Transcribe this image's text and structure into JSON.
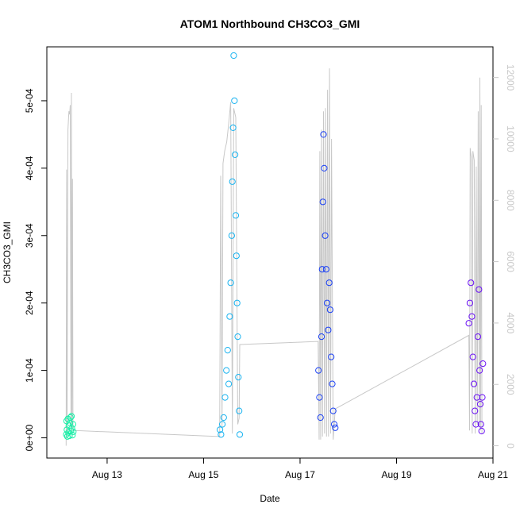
{
  "chart_data": {
    "type": "scatter",
    "title": "ATOM1 Northbound CH3CO3_GMI",
    "xlabel": "Date",
    "ylabel": "CH3CO3_GMI",
    "x_axis": {
      "type": "date",
      "range": [
        "2016-08-11T18:00",
        "2016-08-21T00:00"
      ],
      "ticks": [
        {
          "value": "2016-08-13",
          "label": "Aug 13"
        },
        {
          "value": "2016-08-15",
          "label": "Aug 15"
        },
        {
          "value": "2016-08-17",
          "label": "Aug 17"
        },
        {
          "value": "2016-08-19",
          "label": "Aug 19"
        },
        {
          "value": "2016-08-21",
          "label": "Aug 21"
        }
      ]
    },
    "y_axis_left": {
      "range": [
        -3e-05,
        0.00058
      ],
      "ticks": [
        {
          "value": 0,
          "label": "0e+00"
        },
        {
          "value": 0.0001,
          "label": "1e-04"
        },
        {
          "value": 0.0002,
          "label": "2e-04"
        },
        {
          "value": 0.0003,
          "label": "3e-04"
        },
        {
          "value": 0.0004,
          "label": "4e-04"
        },
        {
          "value": 0.0005,
          "label": "5e-04"
        }
      ]
    },
    "y_axis_right": {
      "color": "#c8c8c8",
      "range": [
        -400,
        13000
      ],
      "ticks": [
        {
          "value": 0,
          "label": "0"
        },
        {
          "value": 2000,
          "label": "2000"
        },
        {
          "value": 4000,
          "label": "4000"
        },
        {
          "value": 6000,
          "label": "6000"
        },
        {
          "value": 8000,
          "label": "8000"
        },
        {
          "value": 10000,
          "label": "10000"
        },
        {
          "value": 12000,
          "label": "12000"
        }
      ]
    },
    "grid": false,
    "legend": "none",
    "altitude_trace": {
      "color": "#c8c8c8",
      "points": [
        [
          "2016-08-12T03:36",
          0
        ],
        [
          "2016-08-12T03:50",
          9000
        ],
        [
          "2016-08-12T04:05",
          400
        ],
        [
          "2016-08-12T04:30",
          10300
        ],
        [
          "2016-08-12T05:00",
          10900
        ],
        [
          "2016-08-12T05:20",
          10800
        ],
        [
          "2016-08-12T05:40",
          11100
        ],
        [
          "2016-08-12T06:00",
          600
        ],
        [
          "2016-08-12T06:15",
          11500
        ],
        [
          "2016-08-12T06:30",
          300
        ],
        [
          "2016-08-12T06:45",
          8700
        ],
        [
          "2016-08-12T07:00",
          600
        ],
        [
          "2016-08-12T07:10",
          500
        ],
        [
          "2016-08-15T08:00",
          300
        ],
        [
          "2016-08-15T08:30",
          8800
        ],
        [
          "2016-08-15T09:10",
          600
        ],
        [
          "2016-08-15T09:40",
          9200
        ],
        [
          "2016-08-15T10:30",
          9600
        ],
        [
          "2016-08-15T11:30",
          9900
        ],
        [
          "2016-08-15T12:30",
          10500
        ],
        [
          "2016-08-15T13:30",
          11200
        ],
        [
          "2016-08-15T14:20",
          400
        ],
        [
          "2016-08-15T15:00",
          11000
        ],
        [
          "2016-08-15T16:00",
          10700
        ],
        [
          "2016-08-15T17:00",
          700
        ],
        [
          "2016-08-15T17:40",
          900
        ],
        [
          "2016-08-15T18:00",
          3300
        ],
        [
          "2016-08-17T09:00",
          3400
        ],
        [
          "2016-08-17T09:30",
          200
        ],
        [
          "2016-08-17T09:50",
          9600
        ],
        [
          "2016-08-17T10:15",
          200
        ],
        [
          "2016-08-17T10:40",
          10300
        ],
        [
          "2016-08-17T11:10",
          300
        ],
        [
          "2016-08-17T11:40",
          10900
        ],
        [
          "2016-08-17T12:10",
          400
        ],
        [
          "2016-08-17T12:40",
          11000
        ],
        [
          "2016-08-17T13:10",
          300
        ],
        [
          "2016-08-17T13:40",
          11600
        ],
        [
          "2016-08-17T14:10",
          300
        ],
        [
          "2016-08-17T14:40",
          12300
        ],
        [
          "2016-08-17T15:10",
          400
        ],
        [
          "2016-08-17T15:40",
          10000
        ],
        [
          "2016-08-17T16:30",
          200
        ],
        [
          "2016-08-17T17:30",
          1200
        ],
        [
          "2016-08-20T12:00",
          3600
        ],
        [
          "2016-08-20T12:20",
          500
        ],
        [
          "2016-08-20T12:40",
          9700
        ],
        [
          "2016-08-20T13:10",
          9400
        ],
        [
          "2016-08-20T13:40",
          400
        ],
        [
          "2016-08-20T14:00",
          9600
        ],
        [
          "2016-08-20T14:40",
          9300
        ],
        [
          "2016-08-20T15:10",
          400
        ],
        [
          "2016-08-20T15:40",
          9100
        ],
        [
          "2016-08-20T16:10",
          700
        ],
        [
          "2016-08-20T16:40",
          10900
        ],
        [
          "2016-08-20T17:10",
          600
        ],
        [
          "2016-08-20T17:30",
          12000
        ],
        [
          "2016-08-20T17:50",
          500
        ],
        [
          "2016-08-20T18:10",
          11100
        ],
        [
          "2016-08-20T18:30",
          400
        ]
      ]
    },
    "series": [
      {
        "color": "#19f0a8",
        "points": [
          [
            "2016-08-12T03:40",
            5e-06
          ],
          [
            "2016-08-12T03:50",
            2.5e-05
          ],
          [
            "2016-08-12T04:00",
            1.2e-05
          ],
          [
            "2016-08-12T04:15",
            2e-06
          ],
          [
            "2016-08-12T04:30",
            2.8e-05
          ],
          [
            "2016-08-12T04:45",
            8e-06
          ],
          [
            "2016-08-12T05:00",
            1.8e-05
          ],
          [
            "2016-08-12T05:15",
            3e-06
          ],
          [
            "2016-08-12T05:30",
            2.2e-05
          ],
          [
            "2016-08-12T05:45",
            3e-05
          ],
          [
            "2016-08-12T06:00",
            1e-05
          ],
          [
            "2016-08-12T06:15",
            3.2e-05
          ],
          [
            "2016-08-12T06:30",
            1.4e-05
          ],
          [
            "2016-08-12T06:45",
            4e-06
          ],
          [
            "2016-08-12T07:00",
            2e-05
          ],
          [
            "2016-08-12T07:10",
            9e-06
          ]
        ]
      },
      {
        "color": "#19b3f0",
        "points": [
          [
            "2016-08-15T08:10",
            1.2e-05
          ],
          [
            "2016-08-15T08:40",
            5e-06
          ],
          [
            "2016-08-15T09:20",
            2e-05
          ],
          [
            "2016-08-15T10:00",
            3e-05
          ],
          [
            "2016-08-15T10:40",
            6e-05
          ],
          [
            "2016-08-15T11:20",
            0.0001
          ],
          [
            "2016-08-15T12:00",
            0.00013
          ],
          [
            "2016-08-15T12:30",
            8e-05
          ],
          [
            "2016-08-15T13:00",
            0.00018
          ],
          [
            "2016-08-15T13:30",
            0.00023
          ],
          [
            "2016-08-15T14:00",
            0.0003
          ],
          [
            "2016-08-15T14:20",
            0.00038
          ],
          [
            "2016-08-15T14:40",
            0.00046
          ],
          [
            "2016-08-15T15:00",
            0.000567
          ],
          [
            "2016-08-15T15:20",
            0.0005
          ],
          [
            "2016-08-15T15:40",
            0.00042
          ],
          [
            "2016-08-15T16:00",
            0.00033
          ],
          [
            "2016-08-15T16:20",
            0.00027
          ],
          [
            "2016-08-15T16:40",
            0.0002
          ],
          [
            "2016-08-15T17:00",
            0.00015
          ],
          [
            "2016-08-15T17:20",
            9e-05
          ],
          [
            "2016-08-15T17:40",
            4e-05
          ],
          [
            "2016-08-15T18:00",
            5e-06
          ]
        ]
      },
      {
        "color": "#1a40f5",
        "points": [
          [
            "2016-08-17T09:10",
            0.0001
          ],
          [
            "2016-08-17T09:40",
            6e-05
          ],
          [
            "2016-08-17T10:10",
            3e-05
          ],
          [
            "2016-08-17T10:40",
            0.00015
          ],
          [
            "2016-08-17T11:00",
            0.00025
          ],
          [
            "2016-08-17T11:20",
            0.00035
          ],
          [
            "2016-08-17T11:40",
            0.00045
          ],
          [
            "2016-08-17T12:00",
            0.0004
          ],
          [
            "2016-08-17T12:30",
            0.0003
          ],
          [
            "2016-08-17T13:00",
            0.00025
          ],
          [
            "2016-08-17T13:30",
            0.0002
          ],
          [
            "2016-08-17T14:00",
            0.00016
          ],
          [
            "2016-08-17T14:30",
            0.00023
          ],
          [
            "2016-08-17T15:00",
            0.00019
          ],
          [
            "2016-08-17T15:30",
            0.00012
          ],
          [
            "2016-08-17T16:00",
            8e-05
          ],
          [
            "2016-08-17T16:30",
            4e-05
          ],
          [
            "2016-08-17T17:00",
            2e-05
          ],
          [
            "2016-08-17T17:30",
            1.5e-05
          ]
        ]
      },
      {
        "color": "#6a10f5",
        "points": [
          [
            "2016-08-20T12:00",
            0.00017
          ],
          [
            "2016-08-20T12:30",
            0.0002
          ],
          [
            "2016-08-20T13:00",
            0.00023
          ],
          [
            "2016-08-20T13:30",
            0.00018
          ],
          [
            "2016-08-20T14:00",
            0.00012
          ],
          [
            "2016-08-20T14:30",
            8e-05
          ],
          [
            "2016-08-20T15:00",
            4e-05
          ],
          [
            "2016-08-20T15:30",
            2e-05
          ],
          [
            "2016-08-20T16:00",
            6e-05
          ],
          [
            "2016-08-20T16:30",
            0.00015
          ],
          [
            "2016-08-20T17:00",
            0.00022
          ],
          [
            "2016-08-20T17:20",
            0.0001
          ],
          [
            "2016-08-20T17:40",
            5e-05
          ],
          [
            "2016-08-20T18:00",
            2e-05
          ],
          [
            "2016-08-20T18:20",
            1e-05
          ],
          [
            "2016-08-20T18:40",
            6e-05
          ],
          [
            "2016-08-20T19:00",
            0.00011
          ]
        ]
      }
    ]
  }
}
